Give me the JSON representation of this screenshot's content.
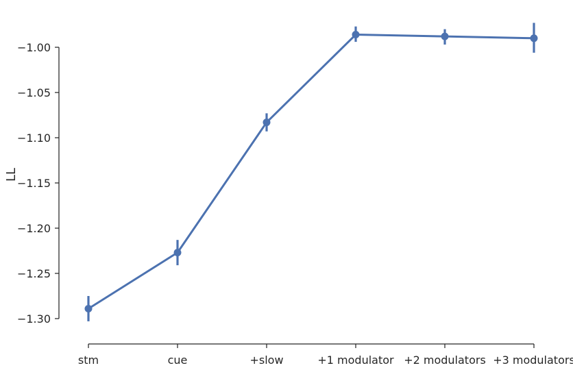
{
  "chart_data": {
    "type": "line",
    "title": "",
    "xlabel": "",
    "ylabel": "LL",
    "categories": [
      "stm",
      "cue",
      "+slow",
      "+1 modulator",
      "+2 modulators",
      "+3 modulators"
    ],
    "series": [
      {
        "values": [
          -1.289,
          -1.227,
          -1.083,
          -0.986,
          -0.988,
          -0.99
        ],
        "error_low": [
          -1.303,
          -1.241,
          -1.093,
          -0.994,
          -0.997,
          -1.006
        ],
        "error_high": [
          -1.275,
          -1.213,
          -1.073,
          -0.977,
          -0.98,
          -0.973
        ],
        "color": "#4c72b0"
      }
    ],
    "ylim": [
      -1.3,
      -1.0
    ],
    "yticks": [
      -1.0,
      -1.05,
      -1.1,
      -1.15,
      -1.2,
      -1.25,
      -1.3
    ],
    "ytick_labels": [
      "−1.00",
      "−1.05",
      "−1.10",
      "−1.15",
      "−1.20",
      "−1.25",
      "−1.30"
    ],
    "grid": false,
    "legend": "none"
  }
}
